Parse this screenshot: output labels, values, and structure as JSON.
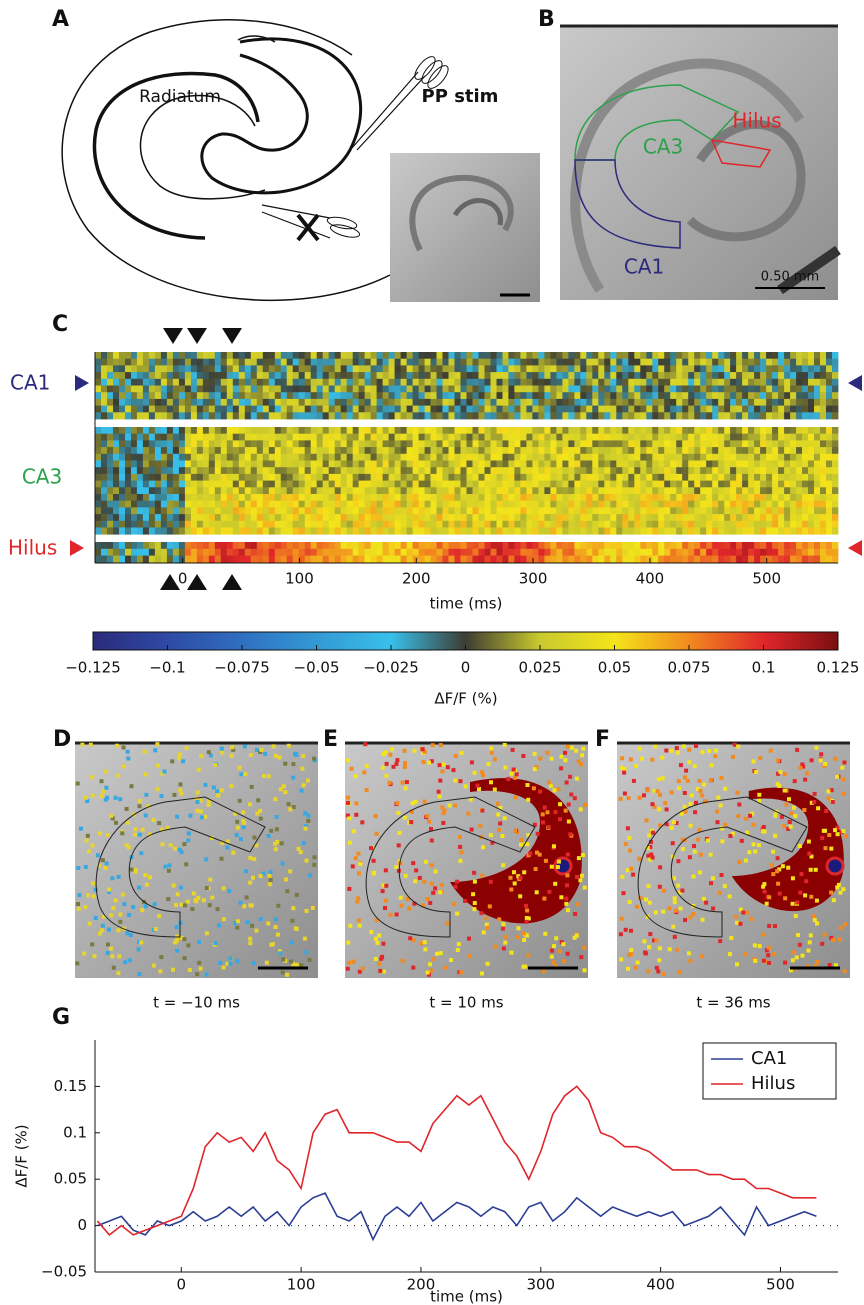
{
  "panel_a": {
    "label": "A",
    "region_label": "Radiatum",
    "stim_label": "PP stim"
  },
  "panel_b": {
    "label": "B",
    "regions": [
      "CA3",
      "Hilus",
      "CA1"
    ],
    "scale_bar": "0.50 mm"
  },
  "panel_c": {
    "label": "C",
    "rows": [
      "CA1",
      "CA3",
      "Hilus"
    ],
    "xlabel": "time (ms)",
    "xlim": [
      -75,
      561
    ],
    "xticks": [
      0,
      100,
      200,
      300,
      400,
      500
    ],
    "colorbar": {
      "label": "ΔF/F (%)",
      "lim": [
        -0.125,
        0.125
      ],
      "ticks": [
        {
          "value": -0.125,
          "label": "−0.125"
        },
        {
          "value": -0.1,
          "label": "−0.1"
        },
        {
          "value": -0.075,
          "label": "−0.075"
        },
        {
          "value": -0.05,
          "label": "−0.05"
        },
        {
          "value": -0.025,
          "label": "−0.025"
        },
        0,
        0.025,
        0.05,
        0.075,
        0.1,
        0.125
      ]
    }
  },
  "frames": [
    {
      "label": "D",
      "caption": "t = −10 ms"
    },
    {
      "label": "E",
      "caption": "t = 10 ms"
    },
    {
      "label": "F",
      "caption": "t = 36 ms"
    }
  ],
  "chart_data": {
    "type": "line",
    "label": "G",
    "xlabel": "time (ms)",
    "ylabel": "ΔF/F (%)",
    "x": [
      -70,
      -60,
      -50,
      -40,
      -30,
      -20,
      -10,
      0,
      10,
      20,
      30,
      40,
      50,
      60,
      70,
      80,
      90,
      100,
      110,
      120,
      130,
      140,
      150,
      160,
      170,
      180,
      190,
      200,
      210,
      220,
      230,
      240,
      250,
      260,
      270,
      280,
      290,
      300,
      310,
      320,
      330,
      340,
      350,
      360,
      370,
      380,
      390,
      400,
      410,
      420,
      430,
      440,
      450,
      460,
      470,
      480,
      490,
      500,
      510,
      520,
      530
    ],
    "series": [
      {
        "name": "CA1",
        "color": "#2b3f94",
        "values": [
          0,
          0.005,
          0.01,
          -0.005,
          -0.01,
          0.005,
          0,
          0.005,
          0.015,
          0.005,
          0.01,
          0.02,
          0.01,
          0.02,
          0.005,
          0.015,
          0,
          0.02,
          0.03,
          0.035,
          0.01,
          0.005,
          0.015,
          -0.015,
          0.01,
          0.02,
          0.01,
          0.025,
          0.005,
          0.015,
          0.025,
          0.02,
          0.01,
          0.02,
          0.015,
          0,
          0.02,
          0.025,
          0.005,
          0.015,
          0.03,
          0.02,
          0.01,
          0.02,
          0.015,
          0.01,
          0.015,
          0.01,
          0.015,
          0,
          0.005,
          0.01,
          0.02,
          0.005,
          -0.01,
          0.02,
          0,
          0.005,
          0.01,
          0.015,
          0.01
        ]
      },
      {
        "name": "Hilus",
        "color": "#e0262b",
        "values": [
          0.005,
          -0.01,
          0,
          -0.01,
          -0.005,
          0,
          0.005,
          0.01,
          0.04,
          0.085,
          0.1,
          0.09,
          0.095,
          0.08,
          0.1,
          0.07,
          0.06,
          0.04,
          0.1,
          0.12,
          0.125,
          0.1,
          0.1,
          0.1,
          0.095,
          0.09,
          0.09,
          0.08,
          0.11,
          0.125,
          0.14,
          0.13,
          0.14,
          0.115,
          0.09,
          0.075,
          0.05,
          0.08,
          0.12,
          0.14,
          0.15,
          0.135,
          0.1,
          0.095,
          0.085,
          0.085,
          0.08,
          0.07,
          0.06,
          0.06,
          0.06,
          0.055,
          0.055,
          0.05,
          0.05,
          0.04,
          0.04,
          0.035,
          0.03,
          0.03,
          0.03
        ]
      }
    ],
    "xlim": [
      -72,
      548
    ],
    "ylim": [
      -0.05,
      0.2
    ],
    "xticks": [
      0,
      100,
      200,
      300,
      400,
      500
    ],
    "yticks": [
      {
        "value": -0.05,
        "label": "−0.05"
      },
      0,
      0.05,
      0.1,
      0.15
    ],
    "legend": "upper right"
  }
}
